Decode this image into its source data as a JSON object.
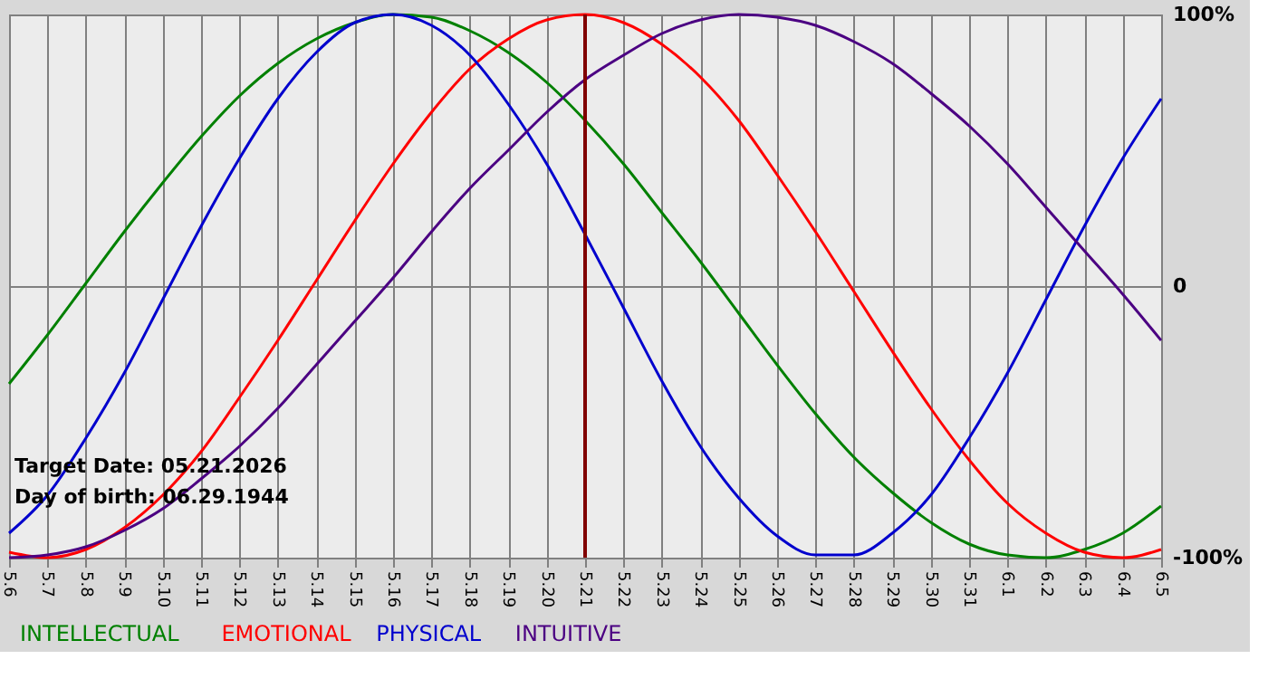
{
  "chart_data": {
    "type": "line",
    "categories": [
      "5.6",
      "5.7",
      "5.8",
      "5.9",
      "5.10",
      "5.11",
      "5.12",
      "5.13",
      "5.14",
      "5.15",
      "5.16",
      "5.17",
      "5.18",
      "5.19",
      "5.20",
      "5.21",
      "5.22",
      "5.23",
      "5.24",
      "5.25",
      "5.26",
      "5.27",
      "5.28",
      "5.29",
      "5.30",
      "5.31",
      "6.1",
      "6.2",
      "6.3",
      "6.4",
      "6.5"
    ],
    "series": [
      {
        "name": "INTELLECTUAL",
        "color": "#008000",
        "values": [
          -36,
          -18,
          1,
          20,
          38,
          55,
          70,
          82,
          91,
          97,
          100,
          99,
          94,
          86,
          75,
          61,
          45,
          27,
          9,
          -10,
          -29,
          -47,
          -63,
          -76,
          -87,
          -95,
          -99,
          -100,
          -97,
          -91,
          -81
        ]
      },
      {
        "name": "EMOTIONAL",
        "color": "#ff0000",
        "values": [
          -98,
          -100,
          -97,
          -89,
          -77,
          -61,
          -41,
          -20,
          2,
          24,
          45,
          64,
          80,
          91,
          98,
          100,
          97,
          89,
          77,
          61,
          41,
          20,
          -2,
          -24,
          -45,
          -64,
          -80,
          -91,
          -98,
          -100,
          -97
        ]
      },
      {
        "name": "PHYSICAL",
        "color": "#0000cd",
        "values": [
          -91,
          -77,
          -56,
          -32,
          -5,
          22,
          47,
          69,
          86,
          97,
          100,
          96,
          85,
          67,
          45,
          19,
          -8,
          -35,
          -59,
          -78,
          -92,
          -99,
          -99,
          -91,
          -77,
          -56,
          -32,
          -5,
          22,
          47,
          69
        ]
      },
      {
        "name": "INTUITIVE",
        "color": "#4b0082",
        "values": [
          -100,
          -99,
          -96,
          -90,
          -82,
          -71,
          -59,
          -45,
          -29,
          -13,
          3,
          20,
          36,
          50,
          64,
          76,
          85,
          93,
          98,
          100,
          99,
          96,
          90,
          82,
          71,
          59,
          45,
          29,
          13,
          -3,
          -20
        ]
      }
    ],
    "ylim": [
      -100,
      100
    ],
    "yticks": [
      {
        "value": 100,
        "label": "100%"
      },
      0,
      {
        "value": -100,
        "label": "-100%"
      }
    ],
    "ref_lines": [
      {
        "axis": "x",
        "value": "5.21",
        "color": "#800000"
      }
    ],
    "annotations": [
      "Target Date: 05.21.2026",
      "Day of birth: 06.29.1944"
    ],
    "grid": true,
    "legend": "bottom",
    "marker": "none",
    "line_style": "solid"
  }
}
